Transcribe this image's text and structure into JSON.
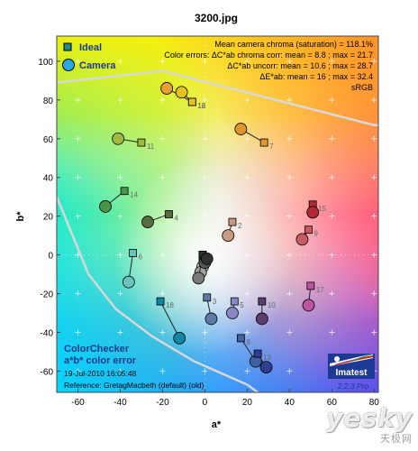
{
  "chart_data": {
    "type": "scatter",
    "title": "3200.jpg",
    "xlabel": "a*",
    "ylabel": "b*",
    "xlim": [
      -70,
      82
    ],
    "ylim": [
      -71,
      113
    ],
    "xticks": [
      -60,
      -40,
      -20,
      0,
      20,
      40,
      60,
      80
    ],
    "yticks": [
      -60,
      -40,
      -20,
      0,
      20,
      40,
      60,
      80,
      100
    ],
    "grid": "light crosses",
    "legend_placement": "top-left",
    "legend": [
      {
        "label": "Ideal",
        "marker": "square"
      },
      {
        "label": "Camera",
        "marker": "circle"
      }
    ],
    "stats": [
      "Mean camera chroma (saturation) = 118.1%",
      "Color errors: ΔC*ab chroma corr:  mean = 8.8 ;  max = 21.7",
      "ΔC*ab uncorr:  mean = 10.6 ;  max = 28.7",
      "ΔE*ab:  mean = 16 ;  max = 32.4",
      "sRGB"
    ],
    "bottom_label": {
      "line1": "ColorChecker",
      "line2": "a*b* color error",
      "date": "19-Jul-2010 16:05:48",
      "reference": "Reference: GretagMacbeth (default) (old)"
    },
    "logo": {
      "name": "Imatest",
      "version": "2.2.3  Pro"
    },
    "patches": [
      {
        "n": 2,
        "ideal": [
          13,
          17
        ],
        "camera": [
          11,
          10
        ],
        "color": "#c89880"
      },
      {
        "n": 3,
        "ideal": [
          1,
          -22
        ],
        "camera": [
          3,
          -33
        ],
        "color": "#5e7aa6"
      },
      {
        "n": 4,
        "ideal": [
          -17,
          21
        ],
        "camera": [
          -27,
          17
        ],
        "color": "#5a6b40"
      },
      {
        "n": 5,
        "ideal": [
          14,
          -24
        ],
        "camera": [
          13,
          -30
        ],
        "color": "#8a88c4"
      },
      {
        "n": 6,
        "ideal": [
          -34,
          1
        ],
        "camera": [
          -36,
          -14
        ],
        "color": "#67c4ba"
      },
      {
        "n": 7,
        "ideal": [
          28,
          58
        ],
        "camera": [
          17,
          65
        ],
        "color": "#e0962e"
      },
      {
        "n": 8,
        "ideal": [
          17,
          -43
        ],
        "camera": [
          24,
          -55
        ],
        "color": "#3e62a6"
      },
      {
        "n": 9,
        "ideal": [
          49,
          13
        ],
        "camera": [
          46,
          8
        ],
        "color": "#c85a62"
      },
      {
        "n": 10,
        "ideal": [
          27,
          -24
        ],
        "camera": [
          27,
          -33
        ],
        "color": "#5a3e6c"
      },
      {
        "n": 11,
        "ideal": [
          -30,
          58
        ],
        "camera": [
          -41,
          60
        ],
        "color": "#a0ba3e"
      },
      {
        "n": 12,
        "ideal": [
          -6,
          79
        ],
        "camera": [
          -18,
          86
        ],
        "color": "#e8a032"
      },
      {
        "n": 13,
        "ideal": [
          25,
          -51
        ],
        "camera": [
          29,
          -58
        ],
        "color": "#2e3e92"
      },
      {
        "n": 14,
        "ideal": [
          -38,
          33
        ],
        "camera": [
          -47,
          25
        ],
        "color": "#4a9648"
      },
      {
        "n": 15,
        "ideal": [
          51,
          26
        ],
        "camera": [
          51,
          22
        ],
        "color": "#b02a38"
      },
      {
        "n": 16,
        "ideal": [
          -6,
          79
        ],
        "camera": [
          -11,
          84
        ],
        "color": "#e6c220"
      },
      {
        "n": 17,
        "ideal": [
          50,
          -16
        ],
        "camera": [
          49,
          -26
        ],
        "color": "#bc54a0"
      },
      {
        "n": 18,
        "ideal": [
          -21,
          -24
        ],
        "camera": [
          -12,
          -43
        ],
        "color": "#0e86a4"
      },
      {
        "n": 19,
        "ideal": [
          -1,
          0
        ],
        "camera": [
          0,
          -3
        ],
        "color": "#f4f4f4"
      },
      {
        "n": 20,
        "ideal": [
          -1,
          0
        ],
        "camera": [
          -1,
          -6
        ],
        "color": "#c8c8c8"
      },
      {
        "n": 21,
        "ideal": [
          -1,
          0
        ],
        "camera": [
          -2,
          -9
        ],
        "color": "#a0a0a0"
      },
      {
        "n": 22,
        "ideal": [
          -1,
          0
        ],
        "camera": [
          -3,
          -12
        ],
        "color": "#7a7a7a"
      },
      {
        "n": 23,
        "ideal": [
          -1,
          0
        ],
        "camera": [
          0,
          -4
        ],
        "color": "#555555"
      },
      {
        "n": 24,
        "ideal": [
          -1,
          0
        ],
        "camera": [
          1,
          -2
        ],
        "color": "#303030"
      }
    ],
    "labeled_patches": [
      2,
      3,
      4,
      5,
      6,
      7,
      8,
      9,
      10,
      11,
      12,
      13,
      14,
      15,
      16,
      17,
      18
    ]
  },
  "watermark": {
    "main": "yesky",
    "sub": "天极网"
  }
}
